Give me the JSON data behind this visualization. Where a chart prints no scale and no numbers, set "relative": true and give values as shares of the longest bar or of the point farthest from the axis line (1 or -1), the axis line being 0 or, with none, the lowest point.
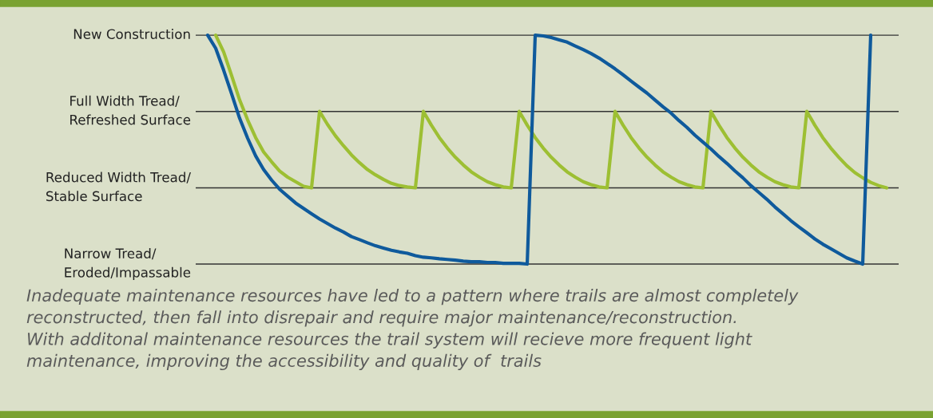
{
  "chart_data": {
    "type": "line",
    "relative": true,
    "categories": [
      null,
      null,
      null,
      null,
      null,
      null,
      null,
      null,
      null,
      null,
      null,
      null,
      null,
      null,
      null,
      null,
      null,
      null,
      null,
      null,
      null,
      null,
      null,
      null,
      null,
      null,
      null,
      null,
      null,
      null,
      null,
      null,
      null,
      null,
      null,
      null,
      null,
      null,
      null,
      null,
      null,
      null,
      null,
      null,
      null,
      null,
      null,
      null,
      null,
      null,
      null,
      null,
      null,
      null,
      null,
      null,
      null,
      null,
      null,
      null,
      null,
      null,
      null,
      null,
      null,
      null,
      null,
      null,
      null,
      null,
      null,
      null,
      null,
      null,
      null,
      null,
      null,
      null,
      null,
      null,
      null,
      null,
      null,
      null,
      null,
      null,
      null,
      null
    ],
    "series": [
      {
        "color": "#9dbf33",
        "values": [
          null,
          null,
          1,
          0.927,
          0.823,
          0.717,
          0.63,
          0.553,
          0.49,
          0.447,
          0.407,
          0.38,
          0.36,
          0.34,
          0.333,
          0.667,
          0.61,
          0.56,
          0.517,
          0.477,
          0.443,
          0.413,
          0.39,
          0.37,
          0.353,
          0.343,
          0.337,
          0.333,
          0.667,
          0.607,
          0.553,
          0.507,
          0.467,
          0.433,
          0.403,
          0.38,
          0.36,
          0.347,
          0.337,
          0.333,
          0.667,
          0.607,
          0.553,
          0.507,
          0.467,
          0.433,
          0.403,
          0.38,
          0.36,
          0.347,
          0.337,
          0.333,
          0.667,
          0.607,
          0.553,
          0.507,
          0.467,
          0.433,
          0.403,
          0.38,
          0.36,
          0.347,
          0.337,
          0.333,
          0.667,
          0.607,
          0.553,
          0.507,
          0.467,
          0.433,
          0.403,
          0.38,
          0.36,
          0.347,
          0.337,
          0.333,
          0.667,
          0.607,
          0.553,
          0.507,
          0.467,
          0.43,
          0.4,
          0.377,
          0.357,
          0.343,
          0.333,
          null
        ]
      },
      {
        "color": "#0f5a9c",
        "values": [
          null,
          1,
          0.943,
          0.847,
          0.743,
          0.637,
          0.55,
          0.473,
          0.413,
          0.367,
          0.327,
          0.297,
          0.267,
          0.243,
          0.22,
          0.197,
          0.177,
          0.157,
          0.14,
          0.12,
          0.107,
          0.093,
          0.08,
          0.07,
          0.06,
          0.053,
          0.047,
          0.037,
          0.03,
          0.027,
          0.023,
          0.02,
          0.017,
          0.013,
          0.01,
          0.01,
          0.007,
          0.007,
          0.003,
          0.003,
          0.003,
          0,
          1,
          0.997,
          0.99,
          0.98,
          0.97,
          0.953,
          0.937,
          0.92,
          0.9,
          0.877,
          0.853,
          0.827,
          0.8,
          0.773,
          0.747,
          0.717,
          0.687,
          0.66,
          0.627,
          0.597,
          0.563,
          0.533,
          0.503,
          0.47,
          0.44,
          0.407,
          0.377,
          0.343,
          0.313,
          0.283,
          0.25,
          0.22,
          0.19,
          0.163,
          0.137,
          0.11,
          0.087,
          0.067,
          0.047,
          0.027,
          0.013,
          0,
          1,
          null,
          null,
          null
        ]
      }
    ],
    "ref_lines": [
      {
        "axis": "y",
        "value": 1,
        "label": "New Construction",
        "color": "#333333"
      },
      {
        "axis": "y",
        "value": 0.667,
        "label": "Full Width Tread/\nRefreshed Surface",
        "color": "#333333"
      },
      {
        "axis": "y",
        "value": 0.333,
        "label": "Reduced Width Tread/\nStable Surface",
        "color": "#333333"
      },
      {
        "axis": "y",
        "value": 0,
        "label": "Narrow Tread/\nEroded/Impassable",
        "color": "#333333"
      }
    ],
    "annotations": [
      "Inadequate maintenance resources have led to a pattern where trails are almost completely\nreconstructed, then fall into disrepair and require major maintenance/reconstruction.\nWith additonal maintenance resources the trail system will recieve more frequent light\nmaintenance, improving the accessibility and quality of  trails"
    ]
  }
}
